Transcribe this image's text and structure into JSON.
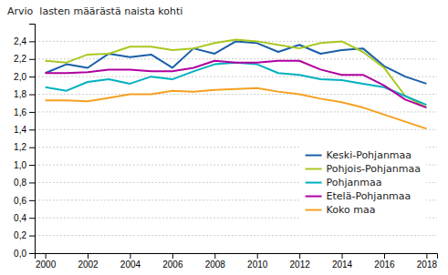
{
  "chart_data": {
    "type": "line",
    "ylabel": "Arvio  lasten määrästä naista kohti",
    "x": [
      2000,
      2001,
      2002,
      2003,
      2004,
      2005,
      2006,
      2007,
      2008,
      2009,
      2010,
      2011,
      2012,
      2013,
      2014,
      2015,
      2016,
      2017,
      2018
    ],
    "series": [
      {
        "name": "Keski-Pohjanmaa",
        "color": "#1a5fa8",
        "values": [
          2.04,
          2.14,
          2.1,
          2.26,
          2.22,
          2.25,
          2.1,
          2.32,
          2.26,
          2.4,
          2.38,
          2.28,
          2.36,
          2.26,
          2.3,
          2.32,
          2.12,
          2.0,
          1.92
        ]
      },
      {
        "name": "Pohjois-Pohjanmaa",
        "color": "#a8c820",
        "values": [
          2.18,
          2.16,
          2.25,
          2.26,
          2.34,
          2.34,
          2.3,
          2.32,
          2.38,
          2.42,
          2.4,
          2.36,
          2.32,
          2.38,
          2.4,
          2.28,
          2.1,
          1.78,
          1.65
        ]
      },
      {
        "name": "Pohjanmaa",
        "color": "#00b0c0",
        "values": [
          1.88,
          1.84,
          1.94,
          1.97,
          1.92,
          2.0,
          1.97,
          2.06,
          2.14,
          2.16,
          2.14,
          2.04,
          2.02,
          1.97,
          1.96,
          1.92,
          1.88,
          1.78,
          1.68
        ]
      },
      {
        "name": "Etelä-Pohjanmaa",
        "color": "#b000a0",
        "values": [
          2.04,
          2.04,
          2.05,
          2.08,
          2.08,
          2.06,
          2.06,
          2.1,
          2.18,
          2.16,
          2.16,
          2.18,
          2.18,
          2.08,
          2.02,
          2.02,
          1.9,
          1.74,
          1.65
        ]
      },
      {
        "name": "Koko maa",
        "color": "#f5a020",
        "values": [
          1.73,
          1.73,
          1.72,
          1.76,
          1.8,
          1.8,
          1.84,
          1.83,
          1.85,
          1.86,
          1.87,
          1.83,
          1.8,
          1.75,
          1.71,
          1.65,
          1.57,
          1.49,
          1.41
        ]
      }
    ],
    "xlim": [
      1999.5,
      2018.5
    ],
    "xticks": [
      2000,
      2002,
      2004,
      2006,
      2008,
      2010,
      2012,
      2014,
      2016,
      2018
    ],
    "ylim": [
      0.0,
      2.6
    ],
    "yticks": [
      {
        "value": 0.0,
        "label": "0,0"
      },
      {
        "value": 0.2,
        "label": "0,2"
      },
      {
        "value": 0.4,
        "label": "0,4"
      },
      {
        "value": 0.6,
        "label": "0,6"
      },
      {
        "value": 0.8,
        "label": "0,8"
      },
      {
        "value": 1.0,
        "label": "1,0"
      },
      {
        "value": 1.2,
        "label": "1,2"
      },
      {
        "value": 1.4,
        "label": "1,4"
      },
      {
        "value": 1.6,
        "label": "1,6"
      },
      {
        "value": 1.8,
        "label": "1,8"
      },
      {
        "value": 2.0,
        "label": "2,0"
      },
      {
        "value": 2.2,
        "label": "2,2"
      },
      {
        "value": 2.4,
        "label": "2,4"
      }
    ],
    "grid": "y",
    "legend": "right"
  }
}
